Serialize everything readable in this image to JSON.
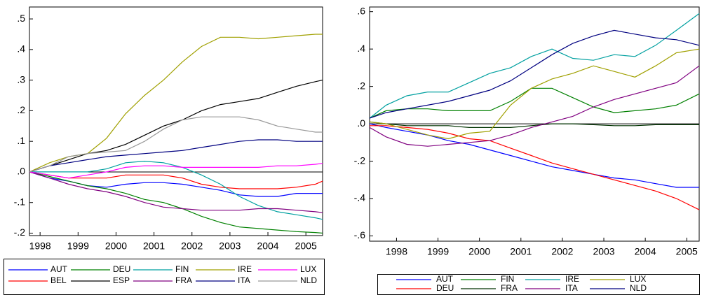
{
  "chart_data": [
    {
      "type": "line",
      "legend": "bottom",
      "x": [
        1998.22,
        1998.75,
        1999.25,
        1999.75,
        2000.25,
        2000.75,
        2001.25,
        2001.75,
        2002.25,
        2002.75,
        2003.25,
        2003.75,
        2004.25,
        2004.75,
        2005.25,
        2005.75,
        2005.94
      ],
      "xlim": [
        1998.22,
        2005.94
      ],
      "xticks": [
        {
          "value": 1998.5,
          "label": "1998"
        },
        {
          "value": 1999.5,
          "label": "1999"
        },
        {
          "value": 2000.5,
          "label": "2000"
        },
        {
          "value": 2001.5,
          "label": "2001"
        },
        {
          "value": 2002.5,
          "label": "2002"
        },
        {
          "value": 2003.5,
          "label": "2003"
        },
        {
          "value": 2004.5,
          "label": "2004"
        },
        {
          "value": 2005.5,
          "label": "2005"
        }
      ],
      "ylim": [
        -0.208,
        0.539
      ],
      "yticks": [
        {
          "value": 0.5,
          "label": ".5"
        },
        {
          "value": 0.4,
          "label": ".4"
        },
        {
          "value": 0.3,
          "label": ".3"
        },
        {
          "value": 0.2,
          "label": ".2"
        },
        {
          "value": 0.1,
          "label": ".1"
        },
        {
          "value": 0,
          "label": ".0"
        },
        {
          "value": -0.1,
          "label": "-.1"
        },
        {
          "value": -0.2,
          "label": "-.2"
        }
      ],
      "series": [
        {
          "name": "AUT",
          "color": "#0000ff",
          "values": [
            0,
            -0.02,
            -0.03,
            -0.045,
            -0.05,
            -0.04,
            -0.035,
            -0.035,
            -0.04,
            -0.05,
            -0.06,
            -0.075,
            -0.08,
            -0.08,
            -0.07,
            -0.07,
            -0.07
          ]
        },
        {
          "name": "BEL",
          "color": "#ff0000",
          "values": [
            0,
            -0.01,
            -0.02,
            -0.02,
            -0.02,
            -0.01,
            -0.01,
            -0.01,
            -0.02,
            -0.04,
            -0.05,
            -0.055,
            -0.055,
            -0.055,
            -0.05,
            -0.04,
            -0.03
          ]
        },
        {
          "name": "DEU",
          "color": "#008000",
          "values": [
            0,
            -0.015,
            -0.03,
            -0.045,
            -0.055,
            -0.07,
            -0.09,
            -0.1,
            -0.12,
            -0.145,
            -0.165,
            -0.18,
            -0.185,
            -0.19,
            -0.195,
            -0.198,
            -0.2
          ]
        },
        {
          "name": "ESP",
          "color": "#000000",
          "values": [
            0,
            0.02,
            0.04,
            0.06,
            0.07,
            0.09,
            0.12,
            0.15,
            0.17,
            0.2,
            0.22,
            0.23,
            0.24,
            0.26,
            0.28,
            0.295,
            0.3
          ]
        },
        {
          "name": "FIN",
          "color": "#00a0a0",
          "values": [
            0,
            0,
            0,
            0,
            0.01,
            0.03,
            0.035,
            0.03,
            0.015,
            -0.01,
            -0.04,
            -0.08,
            -0.11,
            -0.13,
            -0.14,
            -0.15,
            -0.155
          ]
        },
        {
          "name": "FRA",
          "color": "#800080",
          "values": [
            0,
            -0.02,
            -0.04,
            -0.055,
            -0.065,
            -0.08,
            -0.1,
            -0.115,
            -0.12,
            -0.125,
            -0.125,
            -0.125,
            -0.12,
            -0.12,
            -0.125,
            -0.13,
            -0.133
          ]
        },
        {
          "name": "IRE",
          "color": "#a0a000",
          "values": [
            0,
            0.03,
            0.05,
            0.06,
            0.11,
            0.19,
            0.25,
            0.3,
            0.36,
            0.41,
            0.44,
            0.44,
            0.435,
            0.44,
            0.445,
            0.45,
            0.45
          ]
        },
        {
          "name": "ITA",
          "color": "#000080",
          "values": [
            0,
            0.02,
            0.03,
            0.04,
            0.05,
            0.055,
            0.06,
            0.065,
            0.07,
            0.08,
            0.09,
            0.1,
            0.105,
            0.105,
            0.1,
            0.1,
            0.1
          ]
        },
        {
          "name": "LUX",
          "color": "#ff00ff",
          "values": [
            0,
            -0.01,
            -0.02,
            -0.01,
            0,
            0.015,
            0.02,
            0.02,
            0.015,
            0.015,
            0.015,
            0.015,
            0.015,
            0.02,
            0.02,
            0.025,
            0.028
          ]
        },
        {
          "name": "NLD",
          "color": "#999999",
          "values": [
            0,
            0.02,
            0.05,
            0.06,
            0.065,
            0.07,
            0.1,
            0.14,
            0.17,
            0.18,
            0.18,
            0.18,
            0.17,
            0.15,
            0.14,
            0.13,
            0.13
          ]
        }
      ]
    },
    {
      "type": "line",
      "legend": "bottom",
      "x": [
        1997.85,
        1998.25,
        1998.75,
        1999.25,
        1999.75,
        2000.25,
        2000.75,
        2001.25,
        2001.75,
        2002.25,
        2002.75,
        2003.25,
        2003.75,
        2004.25,
        2004.75,
        2005.25,
        2005.8
      ],
      "xlim": [
        1997.85,
        2005.8
      ],
      "xticks": [
        {
          "value": 1998.5,
          "label": "1998"
        },
        {
          "value": 1999.5,
          "label": "1999"
        },
        {
          "value": 2000.5,
          "label": "2000"
        },
        {
          "value": 2001.5,
          "label": "2001"
        },
        {
          "value": 2002.5,
          "label": "2002"
        },
        {
          "value": 2003.5,
          "label": "2003"
        },
        {
          "value": 2004.5,
          "label": "2004"
        },
        {
          "value": 2005.5,
          "label": "2005"
        }
      ],
      "ylim": [
        -0.628,
        0.625
      ],
      "yticks": [
        {
          "value": 0.6,
          "label": ".6"
        },
        {
          "value": 0.4,
          "label": ".4"
        },
        {
          "value": 0.2,
          "label": ".2"
        },
        {
          "value": 0,
          "label": ".0"
        },
        {
          "value": -0.2,
          "label": "-.2"
        },
        {
          "value": -0.4,
          "label": "-.4"
        },
        {
          "value": -0.6,
          "label": "-.6"
        }
      ],
      "series": [
        {
          "name": "AUT",
          "color": "#0000ff",
          "values": [
            0,
            -0.02,
            -0.04,
            -0.06,
            -0.09,
            -0.11,
            -0.14,
            -0.17,
            -0.2,
            -0.23,
            -0.25,
            -0.27,
            -0.29,
            -0.3,
            -0.32,
            -0.34,
            -0.34
          ]
        },
        {
          "name": "DEU",
          "color": "#ff0000",
          "values": [
            -0.01,
            -0.01,
            -0.02,
            -0.03,
            -0.05,
            -0.08,
            -0.09,
            -0.13,
            -0.17,
            -0.21,
            -0.24,
            -0.27,
            -0.3,
            -0.33,
            -0.36,
            -0.4,
            -0.46
          ]
        },
        {
          "name": "FIN",
          "color": "#008000",
          "values": [
            0.03,
            0.07,
            0.08,
            0.08,
            0.07,
            0.07,
            0.07,
            0.12,
            0.19,
            0.19,
            0.14,
            0.09,
            0.06,
            0.07,
            0.08,
            0.1,
            0.16
          ]
        },
        {
          "name": "FRA",
          "color": "#003300",
          "values": [
            0.01,
            0,
            -0.01,
            -0.01,
            -0.01,
            -0.02,
            -0.02,
            -0.02,
            -0.01,
            0,
            0,
            -0.005,
            -0.01,
            -0.01,
            -0.005,
            -0.005,
            -0.005
          ]
        },
        {
          "name": "IRE",
          "color": "#00a0a0",
          "values": [
            0.03,
            0.1,
            0.15,
            0.17,
            0.17,
            0.22,
            0.27,
            0.3,
            0.36,
            0.4,
            0.35,
            0.34,
            0.37,
            0.36,
            0.42,
            0.5,
            0.59
          ]
        },
        {
          "name": "ITA",
          "color": "#800080",
          "values": [
            -0.02,
            -0.07,
            -0.11,
            -0.12,
            -0.11,
            -0.1,
            -0.09,
            -0.06,
            -0.02,
            0.01,
            0.04,
            0.09,
            0.13,
            0.16,
            0.19,
            0.22,
            0.31
          ]
        },
        {
          "name": "LUX",
          "color": "#a0a000",
          "values": [
            0.01,
            0,
            -0.03,
            -0.06,
            -0.08,
            -0.05,
            -0.04,
            0.1,
            0.19,
            0.24,
            0.27,
            0.31,
            0.28,
            0.25,
            0.31,
            0.38,
            0.4
          ]
        },
        {
          "name": "NLD",
          "color": "#000080",
          "values": [
            0.03,
            0.06,
            0.08,
            0.1,
            0.12,
            0.15,
            0.18,
            0.23,
            0.3,
            0.37,
            0.43,
            0.47,
            0.5,
            0.48,
            0.46,
            0.45,
            0.42
          ]
        }
      ]
    }
  ]
}
